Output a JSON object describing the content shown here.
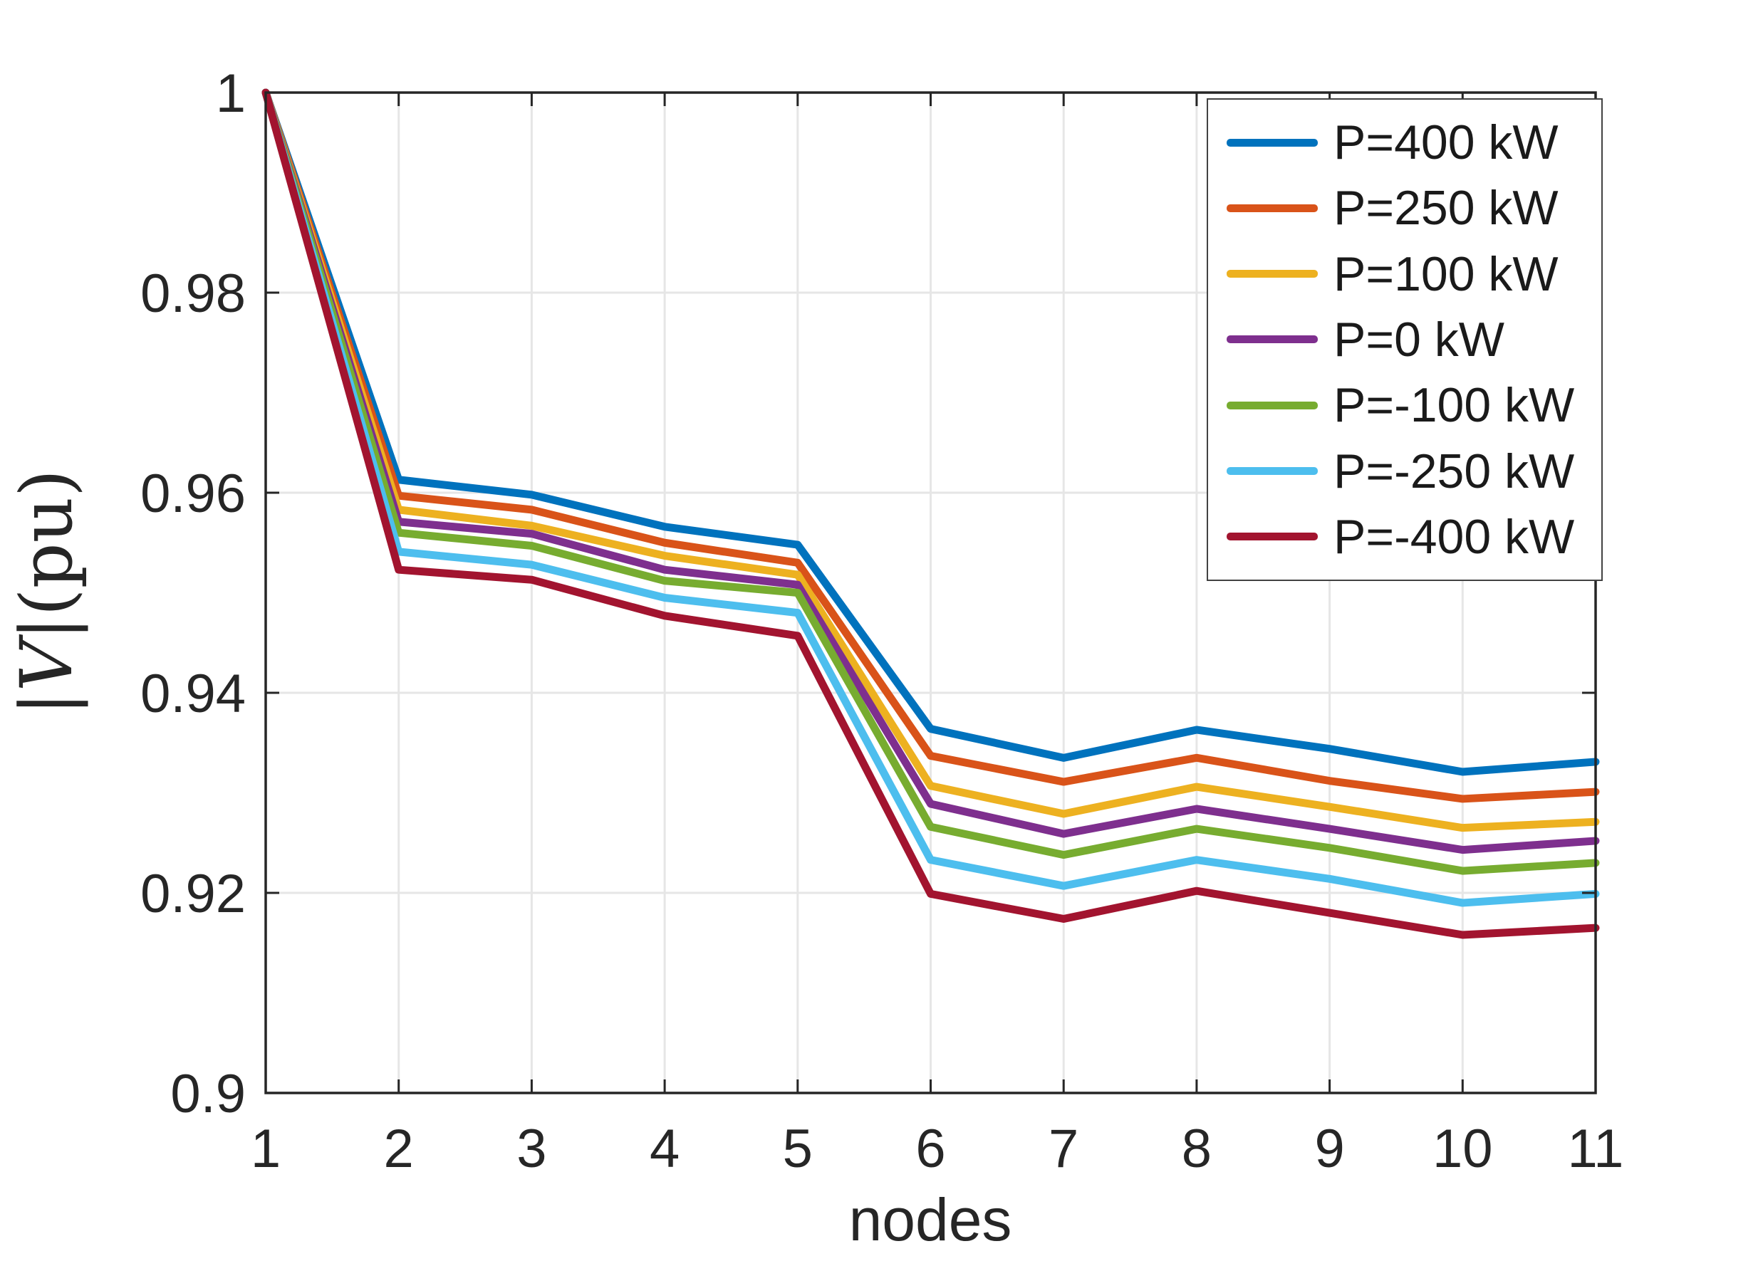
{
  "figure": {
    "background": "#ffffff",
    "axis_color": "#262626",
    "grid_color": "#e6e6e6",
    "tick_color": "#262626",
    "legend_border_color": "#424242"
  },
  "chart_data": {
    "type": "line",
    "title": "",
    "xlabel": "nodes",
    "ylabel": "|V|(pu)",
    "grid": true,
    "legend_position": "top-right",
    "x": [
      1,
      2,
      3,
      4,
      5,
      6,
      7,
      8,
      9,
      10,
      11
    ],
    "xlim": [
      1,
      11
    ],
    "ylim": [
      0.9,
      1.0
    ],
    "x_ticks": [
      1,
      2,
      3,
      4,
      5,
      6,
      7,
      8,
      9,
      10,
      11
    ],
    "x_tick_labels": [
      "1",
      "2",
      "3",
      "4",
      "5",
      "6",
      "7",
      "8",
      "9",
      "10",
      "11"
    ],
    "y_ticks": [
      0.9,
      0.92,
      0.94,
      0.96,
      0.98,
      1
    ],
    "y_tick_labels": [
      "0.9",
      "0.92",
      "0.94",
      "0.96",
      "0.98",
      "1"
    ],
    "line_width": 11,
    "series": [
      {
        "name": "P=400 kW",
        "color": "#0072BD",
        "values": [
          1.0,
          0.9613,
          0.9598,
          0.9566,
          0.9548,
          0.9364,
          0.9335,
          0.9363,
          0.9344,
          0.9321,
          0.9331
        ]
      },
      {
        "name": "P=250 kW",
        "color": "#D95319",
        "values": [
          1.0,
          0.9597,
          0.9583,
          0.955,
          0.953,
          0.9337,
          0.9311,
          0.9335,
          0.9312,
          0.9294,
          0.9301
        ]
      },
      {
        "name": "P=100 kW",
        "color": "#EDB120",
        "values": [
          1.0,
          0.9583,
          0.9567,
          0.9537,
          0.9518,
          0.9307,
          0.9279,
          0.9306,
          0.9286,
          0.9265,
          0.9271
        ]
      },
      {
        "name": "P=0 kW",
        "color": "#7E2F8E",
        "values": [
          1.0,
          0.9571,
          0.9559,
          0.9523,
          0.9508,
          0.9289,
          0.9259,
          0.9284,
          0.9264,
          0.9243,
          0.9252
        ]
      },
      {
        "name": "P=-100 kW",
        "color": "#77AC30",
        "values": [
          1.0,
          0.956,
          0.9547,
          0.9512,
          0.95,
          0.9266,
          0.9238,
          0.9264,
          0.9245,
          0.9222,
          0.923
        ]
      },
      {
        "name": "P=-250 kW",
        "color": "#4DBEEE",
        "values": [
          1.0,
          0.9541,
          0.9528,
          0.9495,
          0.948,
          0.9233,
          0.9207,
          0.9233,
          0.9214,
          0.919,
          0.9199
        ]
      },
      {
        "name": "P=-400 kW",
        "color": "#A2142F",
        "values": [
          1.0,
          0.9523,
          0.9513,
          0.9477,
          0.9457,
          0.9199,
          0.9174,
          0.9202,
          0.918,
          0.9158,
          0.9165
        ]
      }
    ]
  }
}
